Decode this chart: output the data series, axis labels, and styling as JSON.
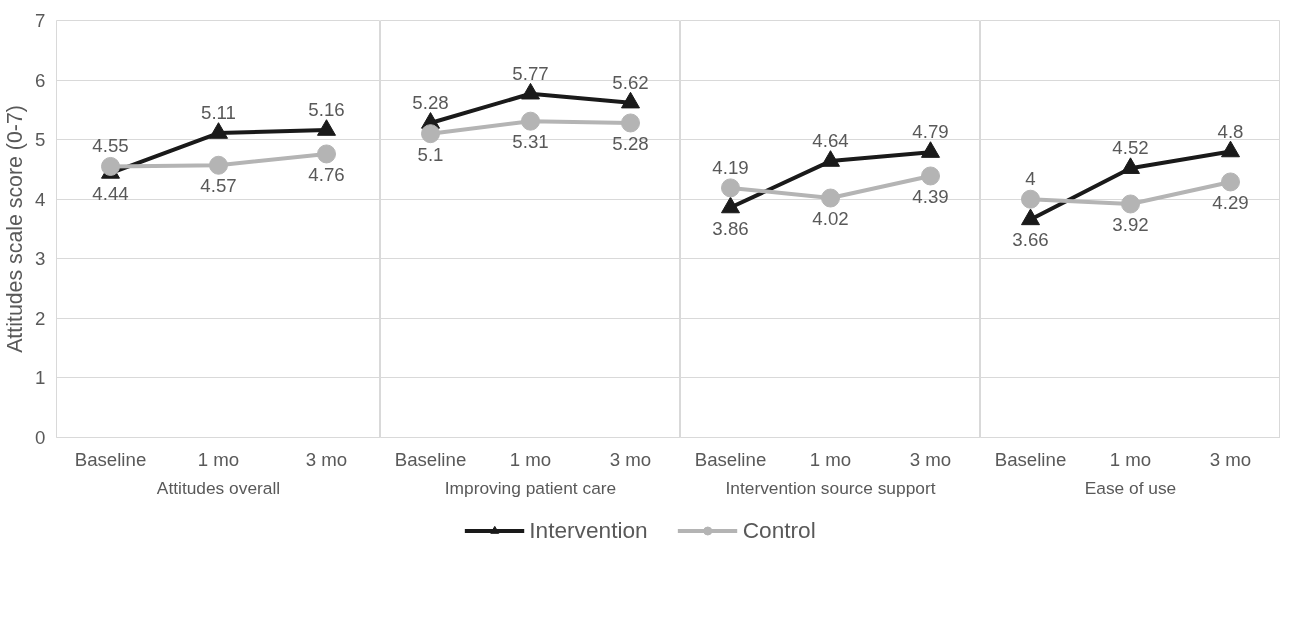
{
  "chart_data": [
    {
      "type": "line",
      "xlabel": "Attitudes overall",
      "ylabel": "Attitudes scale score (0-7)",
      "categories": [
        "Baseline",
        "1 mo",
        "3 mo"
      ],
      "ylim": [
        0,
        7
      ],
      "yticks": [
        0,
        1,
        2,
        3,
        4,
        5,
        6,
        7
      ],
      "grid": "y",
      "legend": "bottom",
      "data_labels": true,
      "series": [
        {
          "name": "Intervention",
          "color": "#1a1a1a",
          "marker": "triangle",
          "values": [
            4.44,
            5.11,
            5.16
          ]
        },
        {
          "name": "Control",
          "color": "#b4b4b4",
          "marker": "circle",
          "values": [
            4.55,
            4.57,
            4.76
          ]
        }
      ]
    },
    {
      "type": "line",
      "xlabel": "Improving patient care",
      "categories": [
        "Baseline",
        "1 mo",
        "3 mo"
      ],
      "ylim": [
        0,
        7
      ],
      "yticks": [
        0,
        1,
        2,
        3,
        4,
        5,
        6,
        7
      ],
      "grid": "y",
      "data_labels": true,
      "tick_labels": "x",
      "series": [
        {
          "color": "#1a1a1a",
          "marker": "triangle",
          "values": [
            5.28,
            5.77,
            5.62
          ]
        },
        {
          "color": "#b4b4b4",
          "marker": "circle",
          "values": [
            5.1,
            5.31,
            5.28
          ]
        }
      ]
    },
    {
      "type": "line",
      "xlabel": "Intervention source support",
      "categories": [
        "Baseline",
        "1 mo",
        "3 mo"
      ],
      "ylim": [
        0,
        7
      ],
      "yticks": [
        0,
        1,
        2,
        3,
        4,
        5,
        6,
        7
      ],
      "grid": "y",
      "data_labels": true,
      "tick_labels": "x",
      "series": [
        {
          "color": "#1a1a1a",
          "marker": "triangle",
          "values": [
            3.86,
            4.64,
            4.79
          ]
        },
        {
          "color": "#b4b4b4",
          "marker": "circle",
          "values": [
            4.19,
            4.02,
            4.39
          ]
        }
      ]
    },
    {
      "type": "line",
      "xlabel": "Ease of use",
      "categories": [
        "Baseline",
        "1 mo",
        "3 mo"
      ],
      "ylim": [
        0,
        7
      ],
      "yticks": [
        0,
        1,
        2,
        3,
        4,
        5,
        6,
        7
      ],
      "grid": "y",
      "data_labels": true,
      "tick_labels": "x",
      "series": [
        {
          "color": "#1a1a1a",
          "marker": "triangle",
          "values": [
            3.66,
            4.52,
            4.8
          ]
        },
        {
          "color": "#b4b4b4",
          "marker": "circle",
          "values": [
            4.0,
            3.92,
            4.29
          ]
        }
      ]
    }
  ]
}
